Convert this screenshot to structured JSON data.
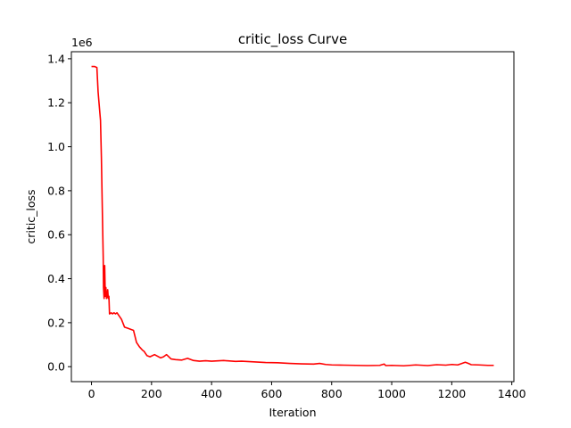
{
  "chart_data": {
    "type": "line",
    "title": "critic_loss Curve",
    "xlabel": "Iteration",
    "ylabel": "critic_loss",
    "y_offset_text": "1e6",
    "xlim": [
      -67,
      1407
    ],
    "ylim": [
      -0.068,
      1.432
    ],
    "x_ticks": [
      0,
      200,
      400,
      600,
      800,
      1000,
      1200,
      1400
    ],
    "x_tick_labels": [
      "0",
      "200",
      "400",
      "600",
      "800",
      "1000",
      "1200",
      "1400"
    ],
    "y_ticks": [
      0.0,
      0.2,
      0.4,
      0.6,
      0.8,
      1.0,
      1.2,
      1.4
    ],
    "y_tick_labels": [
      "0.0",
      "0.2",
      "0.4",
      "0.6",
      "0.8",
      "1.0",
      "1.2",
      "1.4"
    ],
    "grid": false,
    "series": [
      {
        "color": "#ff0000",
        "x": [
          0,
          10,
          18,
          22,
          25,
          30,
          33,
          36,
          39,
          40,
          42,
          44,
          46,
          48,
          50,
          52,
          54,
          56,
          58,
          60,
          66,
          70,
          75,
          80,
          85,
          100,
          110,
          120,
          130,
          140,
          150,
          160,
          170,
          175,
          185,
          195,
          210,
          230,
          240,
          250,
          265,
          280,
          300,
          320,
          340,
          360,
          380,
          400,
          440,
          480,
          500,
          540,
          580,
          620,
          660,
          700,
          740,
          760,
          780,
          800,
          840,
          880,
          920,
          960,
          975,
          980,
          1000,
          1040,
          1080,
          1120,
          1150,
          1180,
          1200,
          1220,
          1245,
          1255,
          1265,
          1290,
          1320,
          1340
        ],
        "y": [
          1.365,
          1.365,
          1.36,
          1.25,
          1.2,
          1.12,
          0.95,
          0.72,
          0.5,
          0.36,
          0.31,
          0.46,
          0.32,
          0.36,
          0.31,
          0.32,
          0.35,
          0.31,
          0.32,
          0.24,
          0.245,
          0.24,
          0.245,
          0.24,
          0.245,
          0.215,
          0.18,
          0.175,
          0.17,
          0.165,
          0.11,
          0.09,
          0.075,
          0.07,
          0.05,
          0.045,
          0.055,
          0.04,
          0.045,
          0.055,
          0.035,
          0.032,
          0.03,
          0.038,
          0.028,
          0.025,
          0.027,
          0.025,
          0.028,
          0.024,
          0.025,
          0.022,
          0.019,
          0.018,
          0.015,
          0.013,
          0.012,
          0.015,
          0.01,
          0.008,
          0.007,
          0.006,
          0.005,
          0.006,
          0.012,
          0.005,
          0.006,
          0.004,
          0.008,
          0.005,
          0.009,
          0.007,
          0.01,
          0.008,
          0.02,
          0.015,
          0.009,
          0.008,
          0.006,
          0.006
        ]
      }
    ]
  }
}
